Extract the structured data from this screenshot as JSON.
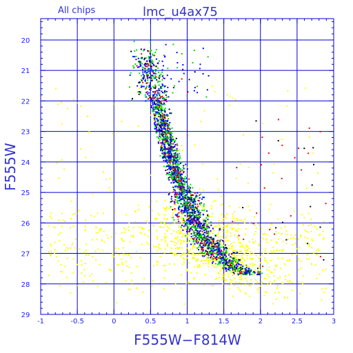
{
  "chart_data": {
    "type": "scatter",
    "title": "lmc_u4ax75",
    "annotation": "All chips",
    "xlabel": "F555W−F814W",
    "ylabel": "F555W",
    "xlim": [
      -1,
      3
    ],
    "ylim": [
      29,
      19.3
    ],
    "y_inverted": true,
    "grid": true,
    "x_ticks": [
      "-1",
      "-0.5",
      "0",
      "0.5",
      "1",
      "1.5",
      "2",
      "2.5",
      "3"
    ],
    "y_ticks": [
      "20",
      "21",
      "22",
      "23",
      "24",
      "25",
      "26",
      "27",
      "28",
      "29"
    ],
    "series_colors": {
      "yellow": "#ffff00",
      "green": "#00dd00",
      "blue": "#0000ff",
      "red": "#ff0000",
      "black": "#000000"
    },
    "sequence_ridge": [
      [
        0.42,
        20.6
      ],
      [
        0.5,
        21.2
      ],
      [
        0.56,
        21.8
      ],
      [
        0.62,
        22.3
      ],
      [
        0.67,
        22.8
      ],
      [
        0.72,
        23.3
      ],
      [
        0.78,
        23.8
      ],
      [
        0.84,
        24.3
      ],
      [
        0.92,
        24.8
      ],
      [
        1.0,
        25.3
      ],
      [
        1.08,
        25.8
      ],
      [
        1.18,
        26.3
      ],
      [
        1.3,
        26.7
      ],
      [
        1.42,
        27.0
      ],
      [
        1.55,
        27.3
      ],
      [
        1.68,
        27.5
      ],
      [
        1.8,
        27.6
      ]
    ],
    "field_region": {
      "x_range": [
        -0.9,
        2.9
      ],
      "y_range": [
        25.0,
        28.6
      ],
      "peak_y": 26.8
    }
  },
  "colors": {
    "axis": "#0000cc",
    "grid": "#0000cc",
    "text": "#3333cc"
  }
}
